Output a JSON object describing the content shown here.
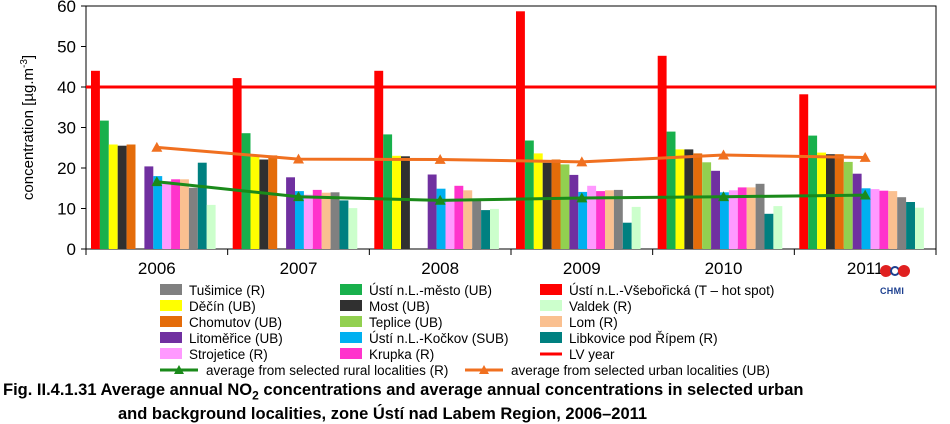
{
  "chart_data": {
    "type": "bar",
    "ylabel": "concentration [µg.m",
    "ylabel_exp": "-3",
    "ylabel_close": "]",
    "ylim": [
      0,
      60
    ],
    "yticks": [
      0,
      10,
      20,
      30,
      40,
      50,
      60
    ],
    "grid": false,
    "legend_position": "bottom",
    "categories": [
      "2006",
      "2007",
      "2008",
      "2009",
      "2010",
      "2011"
    ],
    "series": [
      {
        "name": "Ústí n.L.-Všebořická (T – hot spot)",
        "color": "#ff0000",
        "values": [
          44.0,
          42.2,
          44.0,
          58.7,
          47.7,
          38.2
        ]
      },
      {
        "name": "Ústí n.L.-město (UB)",
        "color": "#18b04c",
        "values": [
          31.7,
          28.6,
          28.3,
          26.8,
          29.0,
          28.0
        ]
      },
      {
        "name": "Děčín (UB)",
        "color": "#ffff00",
        "values": [
          25.8,
          22.8,
          23.0,
          23.6,
          24.6,
          23.8
        ]
      },
      {
        "name": "Most (UB)",
        "color": "#303030",
        "values": [
          25.5,
          22.1,
          22.9,
          21.3,
          24.6,
          23.4
        ]
      },
      {
        "name": "Chomutov (UB)",
        "color": "#e46c0a",
        "values": [
          25.8,
          23.1,
          null,
          22.1,
          23.6,
          23.4
        ]
      },
      {
        "name": "Teplice (UB)",
        "color": "#92d050",
        "values": [
          null,
          null,
          null,
          20.9,
          21.4,
          21.5
        ]
      },
      {
        "name": "Litoměřice (UB)",
        "color": "#7030a0",
        "values": [
          20.4,
          17.7,
          18.4,
          18.3,
          19.3,
          18.6
        ]
      },
      {
        "name": "Ústí n.L.-Kočkov (SUB)",
        "color": "#00b0f0",
        "values": [
          18.0,
          14.3,
          14.9,
          14.1,
          14.0,
          15.0
        ]
      },
      {
        "name": "Strojetice (R)",
        "color": "#ff99ff",
        "values": [
          16.8,
          13.4,
          12.3,
          15.6,
          14.5,
          14.8
        ]
      },
      {
        "name": "Krupka (R)",
        "color": "#ff33cc",
        "values": [
          17.2,
          14.6,
          15.6,
          14.3,
          15.2,
          14.4
        ]
      },
      {
        "name": "Lom (R)",
        "color": "#fac090",
        "values": [
          17.2,
          13.9,
          14.5,
          14.5,
          15.2,
          14.3
        ]
      },
      {
        "name": "Tušimice (R)",
        "color": "#808080",
        "values": [
          15.1,
          14.0,
          12.1,
          14.6,
          16.1,
          12.8
        ]
      },
      {
        "name": "Libkovice pod Řípem (R)",
        "color": "#008080",
        "values": [
          21.3,
          12.0,
          9.6,
          6.5,
          8.7,
          11.6
        ]
      },
      {
        "name": "Valdek (R)",
        "color": "#ccffcc",
        "values": [
          10.9,
          10.1,
          9.9,
          10.4,
          10.6,
          10.2
        ]
      }
    ],
    "reference_line": {
      "name": "LV year",
      "value": 40,
      "color": "#ff0000"
    },
    "lines": [
      {
        "name": "average from selected rural localities (R)",
        "color": "#1a8a1a",
        "marker": "triangle",
        "values": [
          16.6,
          12.9,
          12.0,
          12.6,
          12.9,
          13.3
        ]
      },
      {
        "name": "average from selected urban localities  (UB)",
        "color": "#f07020",
        "marker": "triangle",
        "values": [
          25.1,
          22.2,
          22.1,
          21.5,
          23.2,
          22.6
        ]
      }
    ],
    "legend_columns": [
      [
        "Tušimice (R)",
        "Děčín (UB)",
        "Chomutov (UB)",
        "Litoměřice (UB)",
        "Strojetice (R)"
      ],
      [
        "Ústí n.L.-město (UB)",
        "Most (UB)",
        "Teplice (UB)",
        "Ústí n.L.-Kočkov (SUB)",
        "Krupka (R)"
      ],
      [
        "Ústí n.L.-Všebořická (T – hot spot)",
        "Valdek (R)",
        "Lom (R)",
        "Libkovice pod Řípem (R)",
        "LV year"
      ]
    ]
  },
  "logo": {
    "text": "CHMI",
    "colors": [
      "#e02020",
      "#1c3f8f"
    ]
  },
  "caption": {
    "prefix": "Fig. II.4.1.31  Average annual NO",
    "sub": "2",
    "rest": " concentrations and average annual concentrations in selected urban",
    "line2": "and background localities, zone Ústí nad Labem Region, 2006–2011"
  }
}
